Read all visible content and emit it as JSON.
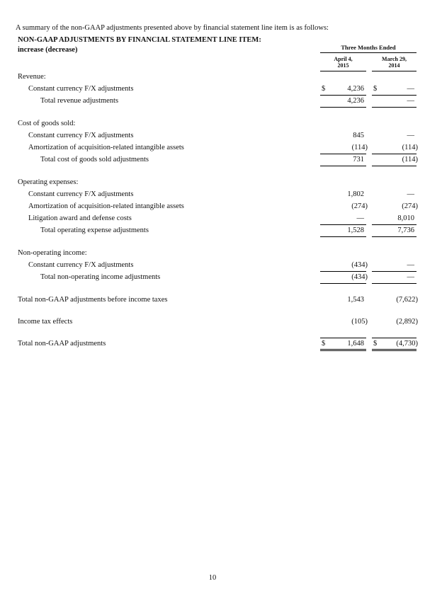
{
  "page": {
    "intro": "A summary of the non-GAAP adjustments presented above by financial statement line item is as follows:",
    "page_number": "10"
  },
  "table": {
    "title": "NON-GAAP ADJUSTMENTS BY FINANCIAL STATEMENT LINE ITEM:",
    "subtitle": "increase (decrease)",
    "period_header": "Three Months Ended",
    "currency_symbol": "$",
    "columns": [
      {
        "line1": "April 4,",
        "line2": "2015"
      },
      {
        "line1": "March 29,",
        "line2": "2014"
      }
    ],
    "sections": [
      {
        "header": "Revenue:",
        "rows": [
          {
            "label": "Constant currency F/X adjustments",
            "level": "item",
            "dollars": true,
            "values": [
              "4,236",
              "—"
            ],
            "underline": true
          },
          {
            "label": "Total revenue adjustments",
            "level": "total",
            "dollars": false,
            "values": [
              "4,236",
              "—"
            ],
            "underline": true
          }
        ]
      },
      {
        "header": "Cost of goods sold:",
        "rows": [
          {
            "label": "Constant currency F/X adjustments",
            "level": "item",
            "dollars": false,
            "values": [
              "845",
              "—"
            ],
            "underline": false
          },
          {
            "label": "Amortization of acquisition-related intangible assets",
            "level": "item",
            "dollars": false,
            "values": [
              "(114)",
              "(114)"
            ],
            "underline": true
          },
          {
            "label": "Total cost of goods sold adjustments",
            "level": "total",
            "dollars": false,
            "values": [
              "731",
              "(114)"
            ],
            "underline": true
          }
        ]
      },
      {
        "header": "Operating expenses:",
        "rows": [
          {
            "label": "Constant currency F/X adjustments",
            "level": "item",
            "dollars": false,
            "values": [
              "1,802",
              "—"
            ],
            "underline": false
          },
          {
            "label": "Amortization of acquisition-related intangible assets",
            "level": "item",
            "dollars": false,
            "values": [
              "(274)",
              "(274)"
            ],
            "underline": false
          },
          {
            "label": "Litigation award and defense costs",
            "level": "item",
            "dollars": false,
            "values": [
              "—",
              "8,010"
            ],
            "underline": true
          },
          {
            "label": "Total operating expense adjustments",
            "level": "total",
            "dollars": false,
            "values": [
              "1,528",
              "7,736"
            ],
            "underline": true
          }
        ]
      },
      {
        "header": "Non-operating income:",
        "rows": [
          {
            "label": "Constant currency F/X adjustments",
            "level": "item",
            "dollars": false,
            "values": [
              "(434)",
              "—"
            ],
            "underline": true
          },
          {
            "label": "Total non-operating income adjustments",
            "level": "total",
            "dollars": false,
            "values": [
              "(434)",
              "—"
            ],
            "underline": true
          }
        ]
      }
    ],
    "summary_rows": [
      {
        "label": "Total non-GAAP adjustments before income taxes",
        "level": "section",
        "dollars": false,
        "values": [
          "1,543",
          "(7,622)"
        ],
        "underline": false
      },
      {
        "label": "Income tax effects",
        "level": "section",
        "dollars": false,
        "values": [
          "(105)",
          "(2,892)"
        ],
        "underline": false
      },
      {
        "label": "Total non-GAAP adjustments",
        "level": "section",
        "dollars": true,
        "values": [
          "1,648",
          "(4,730)"
        ],
        "topline": true,
        "double_underline": true
      }
    ]
  }
}
